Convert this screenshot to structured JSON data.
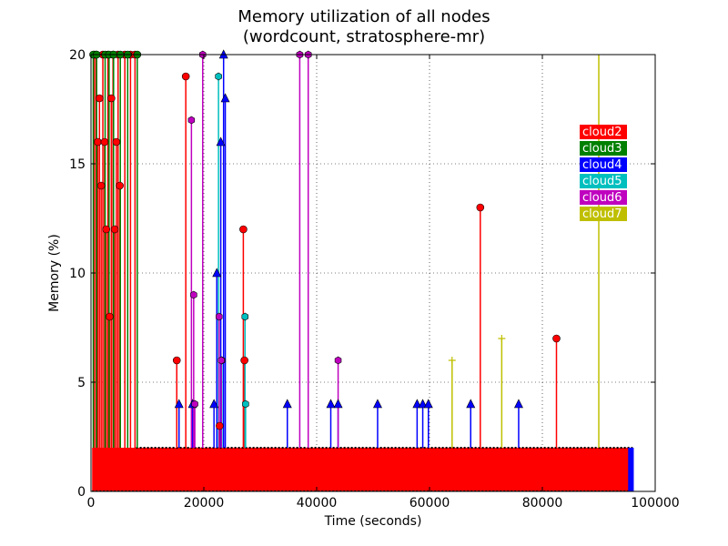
{
  "chart_data": {
    "type": "line",
    "title_line1": "Memory utilization of all nodes",
    "title_line2": "(wordcount, stratosphere-mr)",
    "xlabel": "Time (seconds)",
    "ylabel": "Memory (%)",
    "xlim": [
      0,
      100000
    ],
    "ylim": [
      0,
      20
    ],
    "xticks": [
      0,
      20000,
      40000,
      60000,
      80000,
      100000
    ],
    "xtick_labels": [
      "0",
      "20000",
      "40000",
      "60000",
      "80000",
      "100000"
    ],
    "yticks": [
      0,
      5,
      10,
      15,
      20
    ],
    "ytick_labels": [
      "0",
      "5",
      "10",
      "15",
      "20"
    ],
    "grid": true,
    "legend_position": "right",
    "baseline_band": {
      "x_start": 200,
      "x_end": 96000,
      "y_low": 0,
      "y_high": 2
    },
    "series": [
      {
        "name": "cloud2",
        "color": "#ff0000",
        "marker": "circle",
        "spikes": [
          {
            "x": 600,
            "y": 20
          },
          {
            "x": 900,
            "y": 20
          },
          {
            "x": 1200,
            "y": 16
          },
          {
            "x": 1500,
            "y": 18
          },
          {
            "x": 1800,
            "y": 14
          },
          {
            "x": 2100,
            "y": 20
          },
          {
            "x": 2400,
            "y": 16
          },
          {
            "x": 2700,
            "y": 12
          },
          {
            "x": 3000,
            "y": 20
          },
          {
            "x": 3300,
            "y": 8
          },
          {
            "x": 3600,
            "y": 18
          },
          {
            "x": 3900,
            "y": 20
          },
          {
            "x": 4200,
            "y": 12
          },
          {
            "x": 4500,
            "y": 16
          },
          {
            "x": 4800,
            "y": 20
          },
          {
            "x": 5100,
            "y": 14
          },
          {
            "x": 6000,
            "y": 20
          },
          {
            "x": 7000,
            "y": 20
          },
          {
            "x": 7800,
            "y": 20
          },
          {
            "x": 15200,
            "y": 6
          },
          {
            "x": 16800,
            "y": 19
          },
          {
            "x": 22800,
            "y": 3
          },
          {
            "x": 27000,
            "y": 12
          },
          {
            "x": 27200,
            "y": 6
          },
          {
            "x": 69000,
            "y": 13
          },
          {
            "x": 82500,
            "y": 7
          }
        ]
      },
      {
        "name": "cloud3",
        "color": "#008000",
        "marker": "circle",
        "spikes": [
          {
            "x": 400,
            "y": 20
          },
          {
            "x": 1000,
            "y": 20
          },
          {
            "x": 2500,
            "y": 20
          },
          {
            "x": 3200,
            "y": 20
          },
          {
            "x": 4000,
            "y": 20
          },
          {
            "x": 5200,
            "y": 20
          },
          {
            "x": 6500,
            "y": 20
          },
          {
            "x": 8200,
            "y": 20
          }
        ]
      },
      {
        "name": "cloud4",
        "color": "#0000ff",
        "marker": "triangle",
        "spikes": [
          {
            "x": 15600,
            "y": 4
          },
          {
            "x": 18000,
            "y": 4
          },
          {
            "x": 21800,
            "y": 4
          },
          {
            "x": 22300,
            "y": 10
          },
          {
            "x": 23000,
            "y": 16
          },
          {
            "x": 23500,
            "y": 20
          },
          {
            "x": 23800,
            "y": 18
          },
          {
            "x": 34800,
            "y": 4
          },
          {
            "x": 42500,
            "y": 4
          },
          {
            "x": 43800,
            "y": 4
          },
          {
            "x": 50800,
            "y": 4
          },
          {
            "x": 57800,
            "y": 4
          },
          {
            "x": 58800,
            "y": 4
          },
          {
            "x": 59800,
            "y": 4
          },
          {
            "x": 67300,
            "y": 4
          },
          {
            "x": 75800,
            "y": 4
          }
        ]
      },
      {
        "name": "cloud5",
        "color": "#00bfbf",
        "marker": "hexagon",
        "spikes": [
          {
            "x": 22600,
            "y": 19
          },
          {
            "x": 23200,
            "y": 6
          },
          {
            "x": 27300,
            "y": 8
          },
          {
            "x": 27400,
            "y": 4
          }
        ]
      },
      {
        "name": "cloud6",
        "color": "#bf00bf",
        "marker": "hexagon",
        "spikes": [
          {
            "x": 17800,
            "y": 17
          },
          {
            "x": 18200,
            "y": 9
          },
          {
            "x": 18400,
            "y": 4
          },
          {
            "x": 19800,
            "y": 20
          },
          {
            "x": 22700,
            "y": 8
          },
          {
            "x": 23100,
            "y": 6
          },
          {
            "x": 37000,
            "y": 20
          },
          {
            "x": 38500,
            "y": 20
          },
          {
            "x": 43800,
            "y": 6
          }
        ]
      },
      {
        "name": "cloud7",
        "color": "#bfbf00",
        "marker": "plus",
        "spikes": [
          {
            "x": 64000,
            "y": 6
          },
          {
            "x": 72800,
            "y": 7
          },
          {
            "x": 90000,
            "y": 20
          }
        ]
      }
    ]
  }
}
